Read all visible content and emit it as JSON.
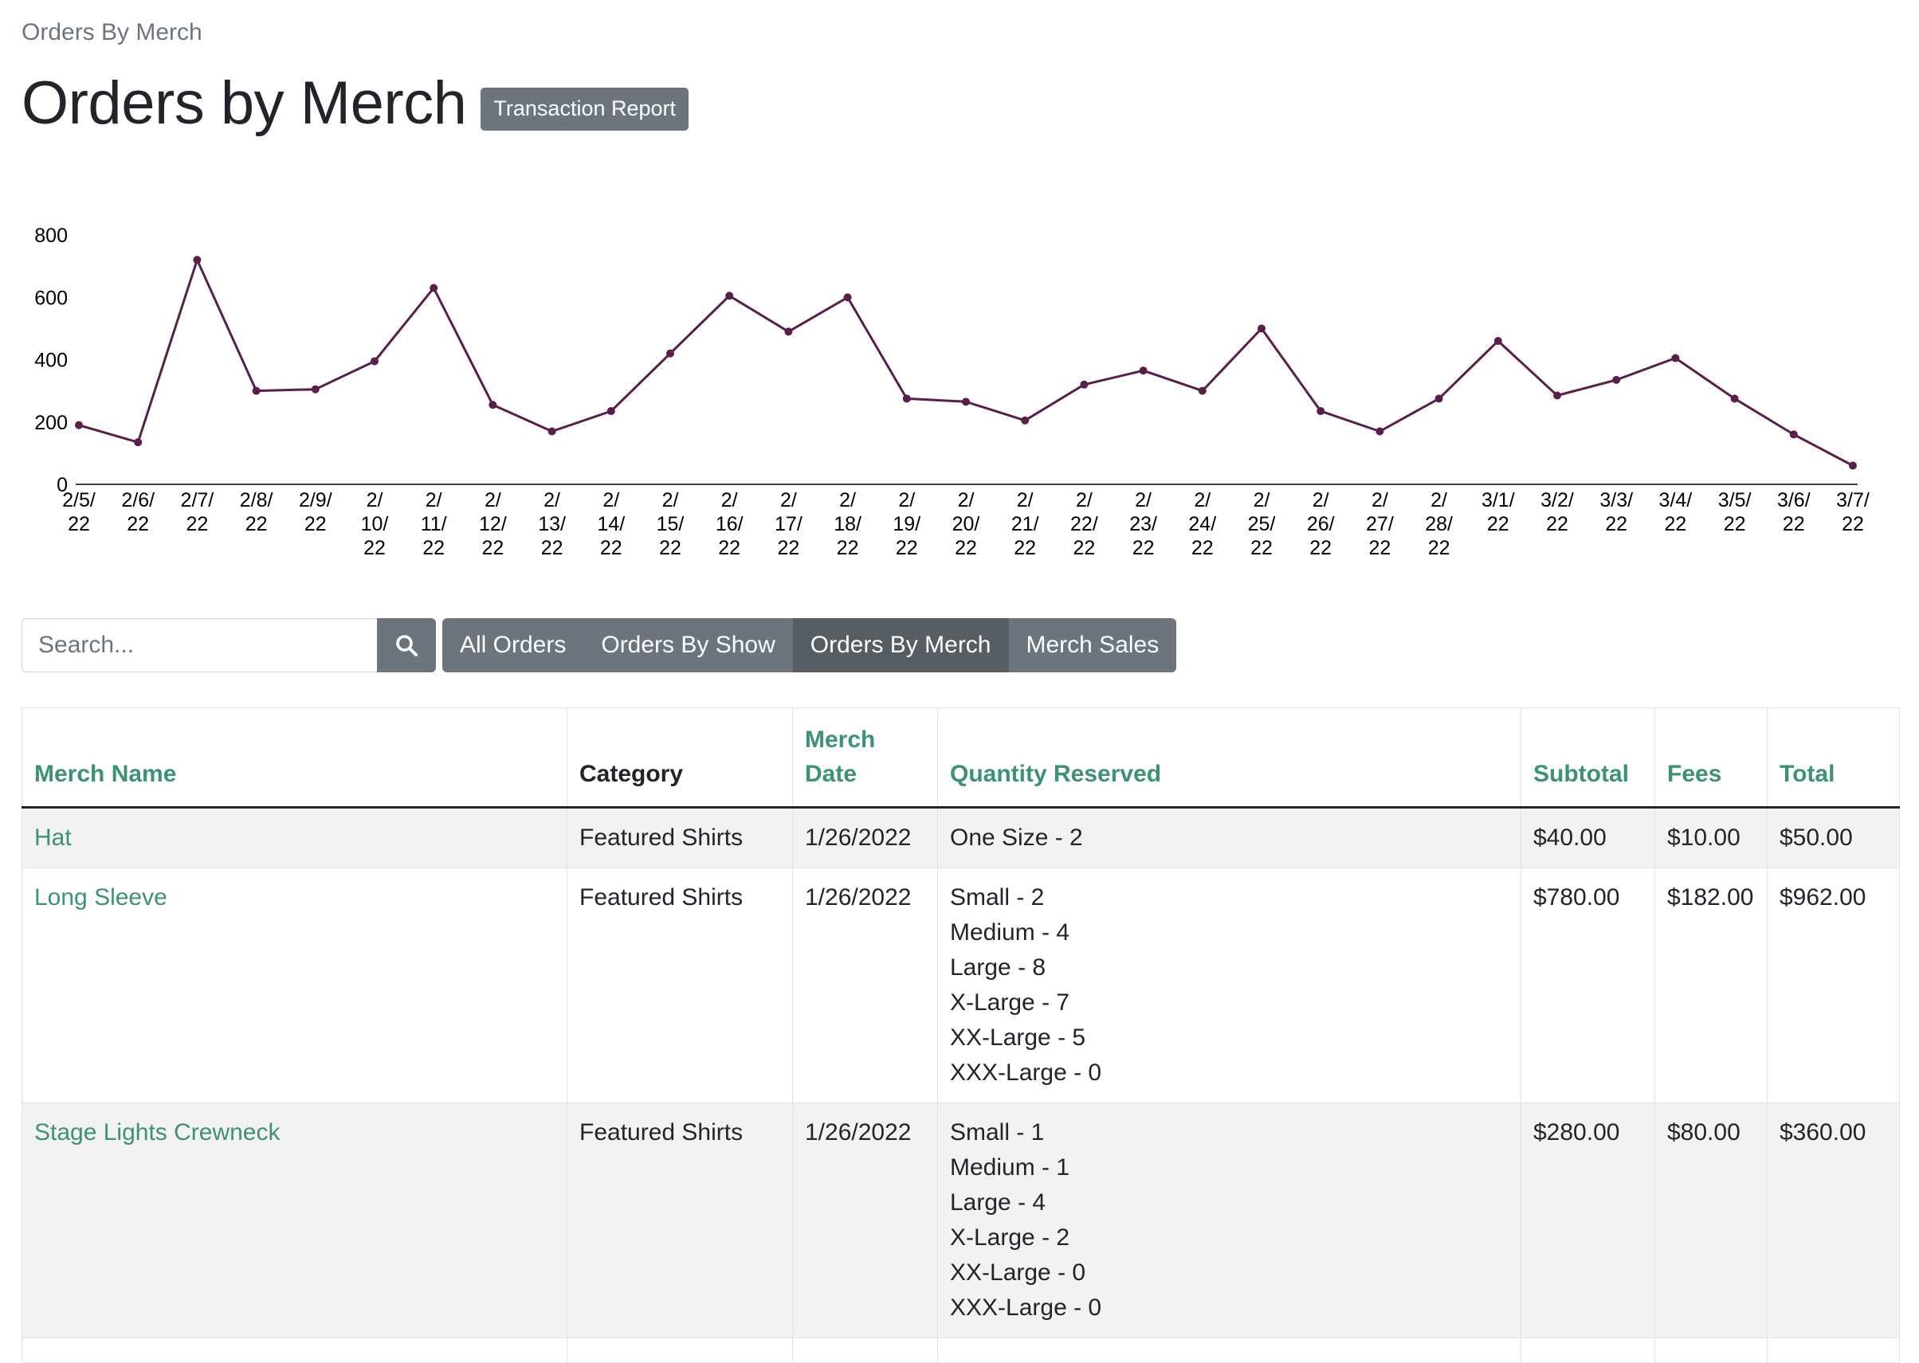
{
  "breadcrumb": "Orders By Merch",
  "page_title": "Orders by Merch",
  "badge": "Transaction Report",
  "chart_data": {
    "type": "line",
    "x": [
      "2/5/22",
      "2/6/22",
      "2/7/22",
      "2/8/22",
      "2/9/22",
      "2/10/22",
      "2/11/22",
      "2/12/22",
      "2/13/22",
      "2/14/22",
      "2/15/22",
      "2/16/22",
      "2/17/22",
      "2/18/22",
      "2/19/22",
      "2/20/22",
      "2/21/22",
      "2/22/22",
      "2/23/22",
      "2/24/22",
      "2/25/22",
      "2/26/22",
      "2/27/22",
      "2/28/22",
      "3/1/22",
      "3/2/22",
      "3/3/22",
      "3/4/22",
      "3/5/22",
      "3/6/22",
      "3/7/22"
    ],
    "x_tick_lines": [
      [
        "2/5/",
        "22"
      ],
      [
        "2/6/",
        "22"
      ],
      [
        "2/7/",
        "22"
      ],
      [
        "2/8/",
        "22"
      ],
      [
        "2/9/",
        "22"
      ],
      [
        "2/",
        "10/",
        "22"
      ],
      [
        "2/",
        "11/",
        "22"
      ],
      [
        "2/",
        "12/",
        "22"
      ],
      [
        "2/",
        "13/",
        "22"
      ],
      [
        "2/",
        "14/",
        "22"
      ],
      [
        "2/",
        "15/",
        "22"
      ],
      [
        "2/",
        "16/",
        "22"
      ],
      [
        "2/",
        "17/",
        "22"
      ],
      [
        "2/",
        "18/",
        "22"
      ],
      [
        "2/",
        "19/",
        "22"
      ],
      [
        "2/",
        "20/",
        "22"
      ],
      [
        "2/",
        "21/",
        "22"
      ],
      [
        "2/",
        "22/",
        "22"
      ],
      [
        "2/",
        "23/",
        "22"
      ],
      [
        "2/",
        "24/",
        "22"
      ],
      [
        "2/",
        "25/",
        "22"
      ],
      [
        "2/",
        "26/",
        "22"
      ],
      [
        "2/",
        "27/",
        "22"
      ],
      [
        "2/",
        "28/",
        "22"
      ],
      [
        "3/1/",
        "22"
      ],
      [
        "3/2/",
        "22"
      ],
      [
        "3/3/",
        "22"
      ],
      [
        "3/4/",
        "22"
      ],
      [
        "3/5/",
        "22"
      ],
      [
        "3/6/",
        "22"
      ],
      [
        "3/7/",
        "22"
      ]
    ],
    "values": [
      190,
      135,
      720,
      300,
      305,
      395,
      630,
      255,
      170,
      235,
      420,
      605,
      490,
      600,
      275,
      265,
      205,
      320,
      365,
      300,
      500,
      235,
      170,
      275,
      460,
      285,
      335,
      405,
      275,
      160,
      60
    ],
    "y_ticks": [
      0,
      200,
      400,
      600,
      800
    ],
    "ylim": [
      0,
      800
    ],
    "line_color": "#5a1e4a",
    "grid": false
  },
  "search": {
    "placeholder": "Search..."
  },
  "icons": {
    "search": "search-icon"
  },
  "nav_buttons": [
    {
      "label": "All Orders",
      "active": false
    },
    {
      "label": "Orders By Show",
      "active": false
    },
    {
      "label": "Orders By Merch",
      "active": true
    },
    {
      "label": "Merch Sales",
      "active": false
    }
  ],
  "table": {
    "headers": [
      "Merch Name",
      "Category",
      "Merch Date",
      "Quantity Reserved",
      "Subtotal",
      "Fees",
      "Total"
    ],
    "header_merch_date_lines": [
      "Merch",
      "Date"
    ],
    "rows": [
      {
        "name": "Hat",
        "category": "Featured Shirts",
        "date": "1/26/2022",
        "quantities": [
          "One Size - 2"
        ],
        "subtotal": "$40.00",
        "fees": "$10.00",
        "total": "$50.00"
      },
      {
        "name": "Long Sleeve",
        "category": "Featured Shirts",
        "date": "1/26/2022",
        "quantities": [
          "Small - 2",
          "Medium - 4",
          "Large - 8",
          "X-Large - 7",
          "XX-Large - 5",
          "XXX-Large - 0"
        ],
        "subtotal": "$780.00",
        "fees": "$182.00",
        "total": "$962.00"
      },
      {
        "name": "Stage Lights Crewneck",
        "category": "Featured Shirts",
        "date": "1/26/2022",
        "quantities": [
          "Small - 1",
          "Medium - 1",
          "Large - 4",
          "X-Large - 2",
          "XX-Large - 0",
          "XXX-Large - 0"
        ],
        "subtotal": "$280.00",
        "fees": "$80.00",
        "total": "$360.00"
      }
    ]
  },
  "colors": {
    "accent_green": "#3c9370",
    "button_gray": "#6c757d",
    "button_active": "#565e64",
    "line": "#5a1e4a"
  }
}
